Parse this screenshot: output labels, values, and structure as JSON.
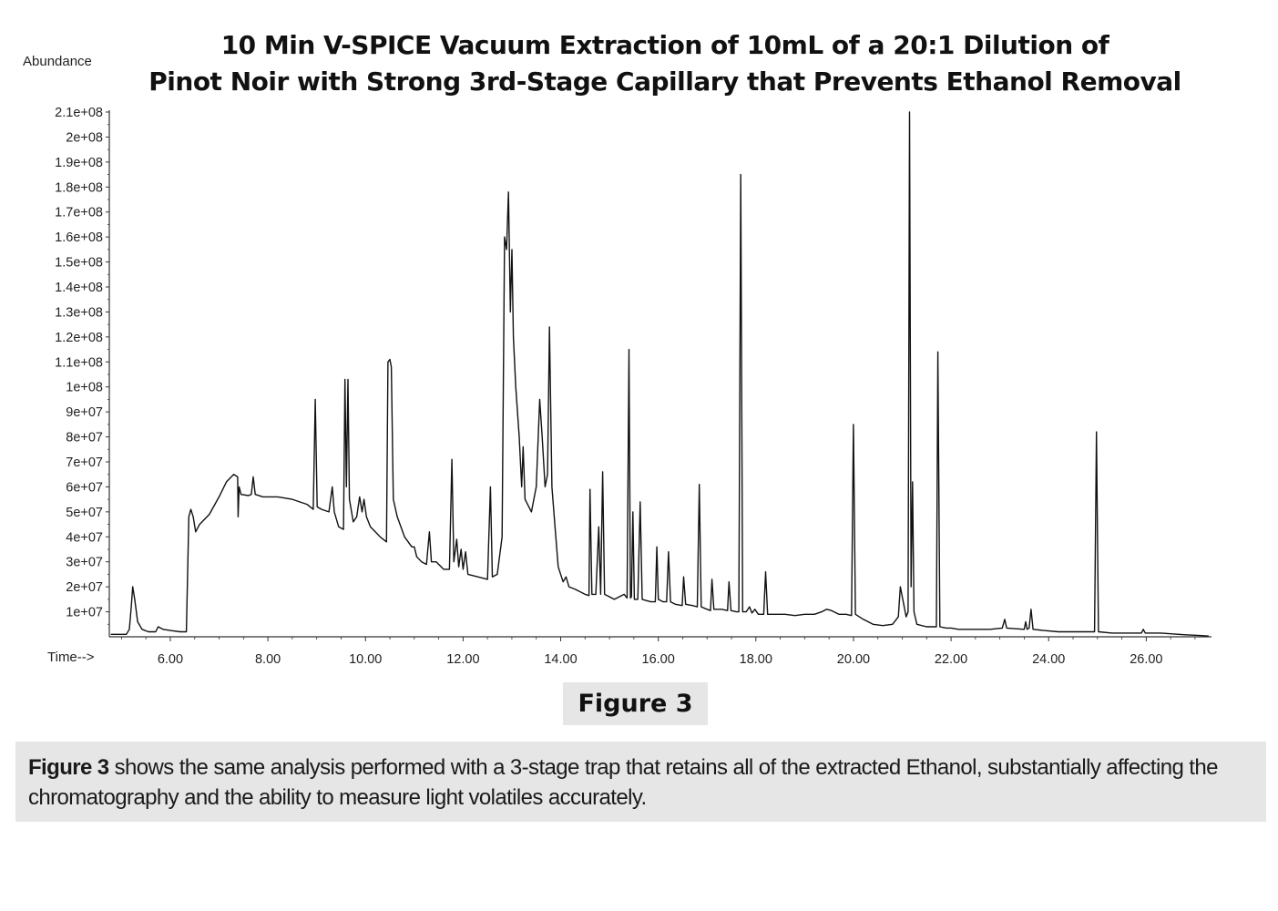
{
  "chart_data": {
    "type": "line",
    "title_lines": [
      "10 Min V-SPICE Vacuum Extraction of 10mL of a 20:1 Dilution of",
      "Pinot Noir with Strong 3rd-Stage Capillary that Prevents Ethanol Removal"
    ],
    "ylabel": "Abundance",
    "xlabel": "Time-->",
    "xlim": [
      4.75,
      27.3
    ],
    "ylim": [
      0,
      210000000
    ],
    "x_ticks": [
      "6.00",
      "8.00",
      "10.00",
      "12.00",
      "14.00",
      "16.00",
      "18.00",
      "20.00",
      "22.00",
      "24.00",
      "26.00"
    ],
    "y_ticks": [
      "1e+07",
      "2e+07",
      "3e+07",
      "4e+07",
      "5e+07",
      "6e+07",
      "7e+07",
      "8e+07",
      "9e+07",
      "1e+08",
      "1.1e+08",
      "1.2e+08",
      "1.3e+08",
      "1.4e+08",
      "1.5e+08",
      "1.6e+08",
      "1.7e+08",
      "1.8e+08",
      "1.9e+08",
      "2e+08",
      "2.1e+08"
    ],
    "grid": false,
    "color": "#111111",
    "series": [
      {
        "points": [
          [
            4.78,
            1000000
          ],
          [
            5.1,
            1000000
          ],
          [
            5.16,
            3000000
          ],
          [
            5.2,
            12000000
          ],
          [
            5.23,
            20000000
          ],
          [
            5.27,
            15000000
          ],
          [
            5.33,
            6000000
          ],
          [
            5.42,
            3000000
          ],
          [
            5.55,
            2000000
          ],
          [
            5.7,
            2000000
          ],
          [
            5.75,
            4000000
          ],
          [
            5.85,
            3000000
          ],
          [
            6.0,
            2500000
          ],
          [
            6.2,
            2000000
          ],
          [
            6.33,
            2000000
          ],
          [
            6.38,
            48000000
          ],
          [
            6.42,
            51000000
          ],
          [
            6.47,
            48000000
          ],
          [
            6.52,
            42000000
          ],
          [
            6.6,
            45000000
          ],
          [
            6.8,
            49000000
          ],
          [
            7.0,
            56000000
          ],
          [
            7.15,
            62000000
          ],
          [
            7.3,
            65000000
          ],
          [
            7.38,
            64000000
          ],
          [
            7.39,
            48000000
          ],
          [
            7.41,
            60000000
          ],
          [
            7.45,
            57000000
          ],
          [
            7.6,
            56500000
          ],
          [
            7.66,
            57000000
          ],
          [
            7.7,
            64000000
          ],
          [
            7.74,
            57000000
          ],
          [
            7.9,
            56000000
          ],
          [
            8.2,
            56000000
          ],
          [
            8.5,
            55000000
          ],
          [
            8.8,
            53000000
          ],
          [
            8.93,
            51000000
          ],
          [
            8.97,
            95000000
          ],
          [
            9.01,
            52000000
          ],
          [
            9.1,
            51000000
          ],
          [
            9.25,
            50000000
          ],
          [
            9.32,
            60000000
          ],
          [
            9.36,
            50000000
          ],
          [
            9.45,
            44000000
          ],
          [
            9.55,
            43000000
          ],
          [
            9.58,
            103000000
          ],
          [
            9.61,
            60000000
          ],
          [
            9.64,
            103000000
          ],
          [
            9.67,
            55000000
          ],
          [
            9.75,
            46000000
          ],
          [
            9.82,
            48000000
          ],
          [
            9.88,
            56000000
          ],
          [
            9.93,
            50000000
          ],
          [
            9.97,
            55000000
          ],
          [
            10.02,
            48000000
          ],
          [
            10.1,
            44000000
          ],
          [
            10.2,
            42000000
          ],
          [
            10.3,
            40000000
          ],
          [
            10.43,
            38000000
          ],
          [
            10.46,
            110000000
          ],
          [
            10.5,
            111000000
          ],
          [
            10.53,
            108000000
          ],
          [
            10.57,
            55000000
          ],
          [
            10.65,
            48000000
          ],
          [
            10.8,
            40000000
          ],
          [
            10.95,
            36000000
          ],
          [
            11.0,
            36000000
          ],
          [
            11.05,
            32000000
          ],
          [
            11.15,
            30000000
          ],
          [
            11.25,
            29000000
          ],
          [
            11.31,
            42000000
          ],
          [
            11.35,
            30000000
          ],
          [
            11.45,
            30000000
          ],
          [
            11.6,
            27000000
          ],
          [
            11.72,
            27000000
          ],
          [
            11.77,
            71000000
          ],
          [
            11.81,
            30000000
          ],
          [
            11.87,
            39000000
          ],
          [
            11.91,
            28000000
          ],
          [
            11.96,
            35000000
          ],
          [
            12.0,
            27000000
          ],
          [
            12.05,
            34000000
          ],
          [
            12.1,
            25000000
          ],
          [
            12.3,
            24000000
          ],
          [
            12.5,
            23000000
          ],
          [
            12.56,
            60000000
          ],
          [
            12.6,
            24000000
          ],
          [
            12.7,
            25000000
          ],
          [
            12.8,
            40000000
          ],
          [
            12.85,
            160000000
          ],
          [
            12.89,
            155000000
          ],
          [
            12.93,
            178000000
          ],
          [
            12.97,
            130000000
          ],
          [
            13.0,
            155000000
          ],
          [
            13.03,
            120000000
          ],
          [
            13.08,
            100000000
          ],
          [
            13.15,
            80000000
          ],
          [
            13.2,
            60000000
          ],
          [
            13.23,
            76000000
          ],
          [
            13.27,
            55000000
          ],
          [
            13.4,
            50000000
          ],
          [
            13.5,
            60000000
          ],
          [
            13.57,
            95000000
          ],
          [
            13.62,
            80000000
          ],
          [
            13.68,
            60000000
          ],
          [
            13.73,
            65000000
          ],
          [
            13.77,
            124000000
          ],
          [
            13.82,
            60000000
          ],
          [
            13.88,
            45000000
          ],
          [
            13.95,
            28000000
          ],
          [
            14.05,
            22000000
          ],
          [
            14.11,
            24000000
          ],
          [
            14.17,
            20000000
          ],
          [
            14.3,
            19000000
          ],
          [
            14.5,
            17000000
          ],
          [
            14.58,
            16500000
          ],
          [
            14.6,
            59000000
          ],
          [
            14.64,
            17000000
          ],
          [
            14.72,
            17000000
          ],
          [
            14.78,
            44000000
          ],
          [
            14.82,
            17000000
          ],
          [
            14.86,
            66000000
          ],
          [
            14.9,
            17000000
          ],
          [
            15.0,
            16000000
          ],
          [
            15.1,
            15000000
          ],
          [
            15.2,
            16000000
          ],
          [
            15.3,
            17000000
          ],
          [
            15.36,
            15500000
          ],
          [
            15.4,
            115000000
          ],
          [
            15.43,
            15500000
          ],
          [
            15.45,
            16000000
          ],
          [
            15.48,
            50000000
          ],
          [
            15.51,
            15000000
          ],
          [
            15.58,
            15000000
          ],
          [
            15.63,
            54000000
          ],
          [
            15.67,
            15000000
          ],
          [
            15.75,
            14500000
          ],
          [
            15.85,
            14000000
          ],
          [
            15.94,
            14000000
          ],
          [
            15.97,
            36000000
          ],
          [
            16.0,
            15000000
          ],
          [
            16.1,
            14000000
          ],
          [
            16.17,
            14000000
          ],
          [
            16.21,
            34000000
          ],
          [
            16.25,
            14000000
          ],
          [
            16.35,
            13000000
          ],
          [
            16.49,
            12500000
          ],
          [
            16.52,
            24000000
          ],
          [
            16.56,
            13000000
          ],
          [
            16.7,
            12500000
          ],
          [
            16.8,
            12000000
          ],
          [
            16.84,
            61000000
          ],
          [
            16.88,
            12000000
          ],
          [
            17.0,
            11000000
          ],
          [
            17.07,
            10500000
          ],
          [
            17.1,
            23000000
          ],
          [
            17.14,
            11000000
          ],
          [
            17.3,
            11000000
          ],
          [
            17.42,
            10500000
          ],
          [
            17.45,
            22000000
          ],
          [
            17.49,
            10500000
          ],
          [
            17.6,
            10000000
          ],
          [
            17.65,
            10000000
          ],
          [
            17.69,
            185000000
          ],
          [
            17.73,
            10000000
          ],
          [
            17.8,
            10000000
          ],
          [
            17.87,
            12000000
          ],
          [
            17.92,
            9500000
          ],
          [
            17.98,
            11000000
          ],
          [
            18.05,
            9000000
          ],
          [
            18.16,
            9000000
          ],
          [
            18.2,
            26000000
          ],
          [
            18.24,
            9000000
          ],
          [
            18.4,
            9000000
          ],
          [
            18.6,
            9000000
          ],
          [
            18.8,
            8500000
          ],
          [
            19.0,
            9000000
          ],
          [
            19.2,
            9000000
          ],
          [
            19.35,
            10000000
          ],
          [
            19.45,
            11000000
          ],
          [
            19.55,
            10500000
          ],
          [
            19.7,
            9000000
          ],
          [
            19.85,
            9000000
          ],
          [
            19.96,
            8500000
          ],
          [
            20.0,
            85000000
          ],
          [
            20.04,
            9000000
          ],
          [
            20.2,
            7000000
          ],
          [
            20.4,
            5000000
          ],
          [
            20.6,
            4500000
          ],
          [
            20.8,
            5000000
          ],
          [
            20.92,
            8000000
          ],
          [
            20.96,
            20000000
          ],
          [
            21.02,
            14000000
          ],
          [
            21.08,
            8000000
          ],
          [
            21.12,
            10000000
          ],
          [
            21.15,
            210000000
          ],
          [
            21.18,
            20000000
          ],
          [
            21.21,
            62000000
          ],
          [
            21.24,
            10000000
          ],
          [
            21.3,
            5000000
          ],
          [
            21.5,
            4000000
          ],
          [
            21.7,
            4000000
          ],
          [
            21.73,
            114000000
          ],
          [
            21.77,
            4000000
          ],
          [
            21.9,
            3500000
          ],
          [
            22.0,
            3500000
          ],
          [
            22.15,
            3000000
          ],
          [
            22.4,
            3000000
          ],
          [
            22.6,
            3000000
          ],
          [
            22.8,
            3000000
          ],
          [
            23.05,
            3500000
          ],
          [
            23.1,
            7000000
          ],
          [
            23.14,
            3500000
          ],
          [
            23.5,
            3000000
          ],
          [
            23.53,
            6000000
          ],
          [
            23.56,
            3000000
          ],
          [
            23.6,
            3500000
          ],
          [
            23.64,
            11000000
          ],
          [
            23.68,
            3000000
          ],
          [
            23.9,
            2500000
          ],
          [
            24.2,
            2000000
          ],
          [
            24.5,
            2000000
          ],
          [
            24.8,
            2000000
          ],
          [
            24.94,
            2000000
          ],
          [
            24.98,
            82000000
          ],
          [
            25.02,
            2000000
          ],
          [
            25.3,
            1500000
          ],
          [
            25.6,
            1500000
          ],
          [
            25.9,
            1500000
          ],
          [
            25.94,
            3000000
          ],
          [
            25.98,
            1500000
          ],
          [
            26.3,
            1500000
          ],
          [
            26.8,
            800000
          ],
          [
            27.1,
            500000
          ],
          [
            27.28,
            300000
          ]
        ]
      }
    ]
  },
  "figure_label": "Figure 3",
  "caption": {
    "lead": "Figure 3",
    "text": " shows the same analysis performed with a 3-stage trap that retains all of the extracted Ethanol, substantially affecting the chromatography and the ability to measure light volatiles accurately."
  }
}
